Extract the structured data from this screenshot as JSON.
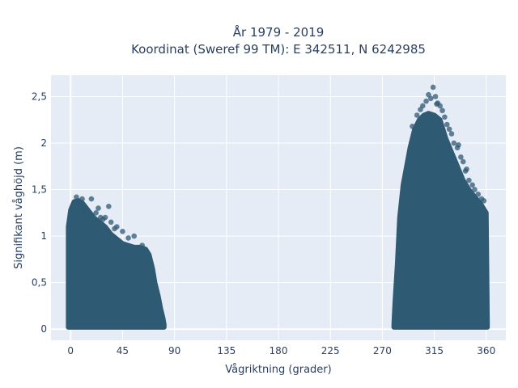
{
  "chart_data": {
    "type": "scatter",
    "title": "År 1979 - 2019",
    "subtitle": "Koordinat (Sweref 99 TM): E 342511, N 6242985",
    "xlabel": "Vågriktning (grader)",
    "ylabel": "Signifikant våghöjd (m)",
    "xlim": [
      -17,
      377
    ],
    "ylim": [
      -0.12,
      2.73
    ],
    "x_ticks": [
      0,
      45,
      90,
      135,
      180,
      225,
      270,
      315,
      360
    ],
    "x_tick_labels": [
      "0",
      "45",
      "90",
      "135",
      "180",
      "225",
      "270",
      "315",
      "360"
    ],
    "y_ticks": [
      0,
      0.5,
      1,
      1.5,
      2,
      2.5
    ],
    "y_tick_labels": [
      "0",
      "0,5",
      "1",
      "1,5",
      "2",
      "2,5"
    ],
    "grid": true,
    "background": "#e5ecf6",
    "marker_color": "#2f5a73",
    "series": [
      {
        "envelope_upper": [
          [
            -2,
            1.1
          ],
          [
            0,
            1.28
          ],
          [
            3,
            1.37
          ],
          [
            6,
            1.38
          ],
          [
            10,
            1.36
          ],
          [
            15,
            1.28
          ],
          [
            20,
            1.2
          ],
          [
            25,
            1.15
          ],
          [
            30,
            1.1
          ],
          [
            35,
            1.02
          ],
          [
            40,
            0.97
          ],
          [
            45,
            0.92
          ],
          [
            50,
            0.9
          ],
          [
            55,
            0.88
          ],
          [
            60,
            0.88
          ],
          [
            65,
            0.86
          ],
          [
            68,
            0.8
          ],
          [
            71,
            0.65
          ],
          [
            73,
            0.5
          ],
          [
            76,
            0.35
          ],
          [
            78,
            0.22
          ],
          [
            80,
            0.12
          ],
          [
            81,
            0.05
          ],
          [
            280,
            0.05
          ],
          [
            281,
            0.3
          ],
          [
            283,
            0.7
          ],
          [
            285,
            1.2
          ],
          [
            288,
            1.55
          ],
          [
            291,
            1.75
          ],
          [
            294,
            1.95
          ],
          [
            298,
            2.15
          ],
          [
            302,
            2.25
          ],
          [
            306,
            2.3
          ],
          [
            310,
            2.32
          ],
          [
            315,
            2.3
          ],
          [
            320,
            2.25
          ],
          [
            325,
            2.05
          ],
          [
            330,
            1.9
          ],
          [
            335,
            1.75
          ],
          [
            340,
            1.6
          ],
          [
            345,
            1.5
          ],
          [
            350,
            1.42
          ],
          [
            355,
            1.35
          ],
          [
            360,
            1.25
          ],
          [
            361,
            0.05
          ]
        ],
        "outliers": [
          [
            5,
            1.42
          ],
          [
            7,
            1.38
          ],
          [
            10,
            1.4
          ],
          [
            18,
            1.4
          ],
          [
            24,
            1.3
          ],
          [
            30,
            1.2
          ],
          [
            35,
            1.15
          ],
          [
            40,
            1.1
          ],
          [
            50,
            0.98
          ],
          [
            55,
            1.0
          ],
          [
            62,
            0.9
          ],
          [
            12,
            1.28
          ],
          [
            22,
            1.25
          ],
          [
            28,
            1.18
          ],
          [
            45,
            1.05
          ],
          [
            33,
            1.32
          ],
          [
            26,
            1.2
          ],
          [
            38,
            1.08
          ],
          [
            296,
            2.18
          ],
          [
            300,
            2.3
          ],
          [
            303,
            2.36
          ],
          [
            305,
            2.4
          ],
          [
            308,
            2.45
          ],
          [
            310,
            2.52
          ],
          [
            312,
            2.48
          ],
          [
            314,
            2.6
          ],
          [
            316,
            2.5
          ],
          [
            318,
            2.43
          ],
          [
            320,
            2.4
          ],
          [
            322,
            2.35
          ],
          [
            324,
            2.28
          ],
          [
            326,
            2.2
          ],
          [
            328,
            2.15
          ],
          [
            330,
            2.1
          ],
          [
            332,
            2.0
          ],
          [
            335,
            1.95
          ],
          [
            338,
            1.85
          ],
          [
            340,
            1.8
          ],
          [
            342,
            1.7
          ],
          [
            345,
            1.6
          ],
          [
            348,
            1.55
          ],
          [
            350,
            1.5
          ],
          [
            353,
            1.45
          ],
          [
            356,
            1.4
          ],
          [
            358,
            1.38
          ],
          [
            343,
            1.72
          ],
          [
            336,
            1.98
          ],
          [
            317,
            2.42
          ]
        ]
      }
    ]
  }
}
